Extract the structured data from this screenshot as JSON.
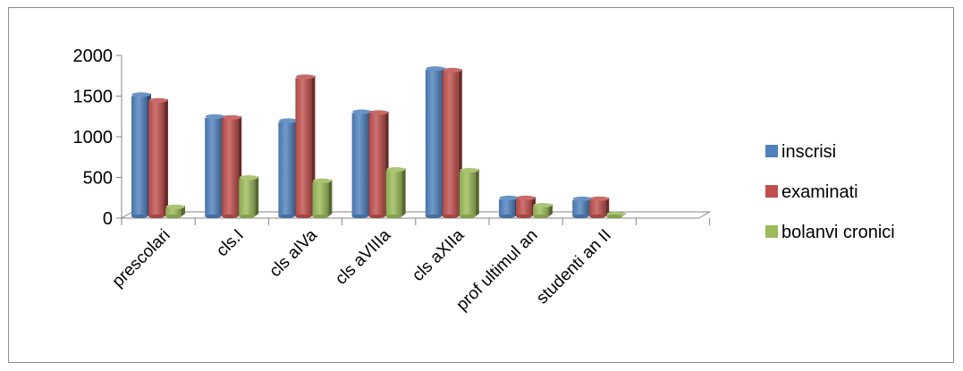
{
  "chart_data": {
    "type": "bar",
    "style": "3d-clustered-column",
    "categories": [
      "prescolari",
      "cls.I",
      "cls aIVa",
      "cls aVIIIa",
      "cls aXIIa",
      "prof ultimul an",
      "studenti an II"
    ],
    "series": [
      {
        "name": "inscrisi",
        "color": "#4F81BD",
        "values": [
          1480,
          1210,
          1160,
          1270,
          1800,
          210,
          200
        ]
      },
      {
        "name": "examinati",
        "color": "#C0504D",
        "values": [
          1410,
          1200,
          1700,
          1260,
          1780,
          210,
          200
        ]
      },
      {
        "name": "bolanvi cronici",
        "color": "#9BBB59",
        "values": [
          100,
          460,
          420,
          560,
          550,
          120,
          5
        ]
      }
    ],
    "yticks": [
      "0",
      "500",
      "1000",
      "1500",
      "2000"
    ],
    "ylim": [
      0,
      2000
    ],
    "grid": false,
    "legend_position": "right"
  }
}
